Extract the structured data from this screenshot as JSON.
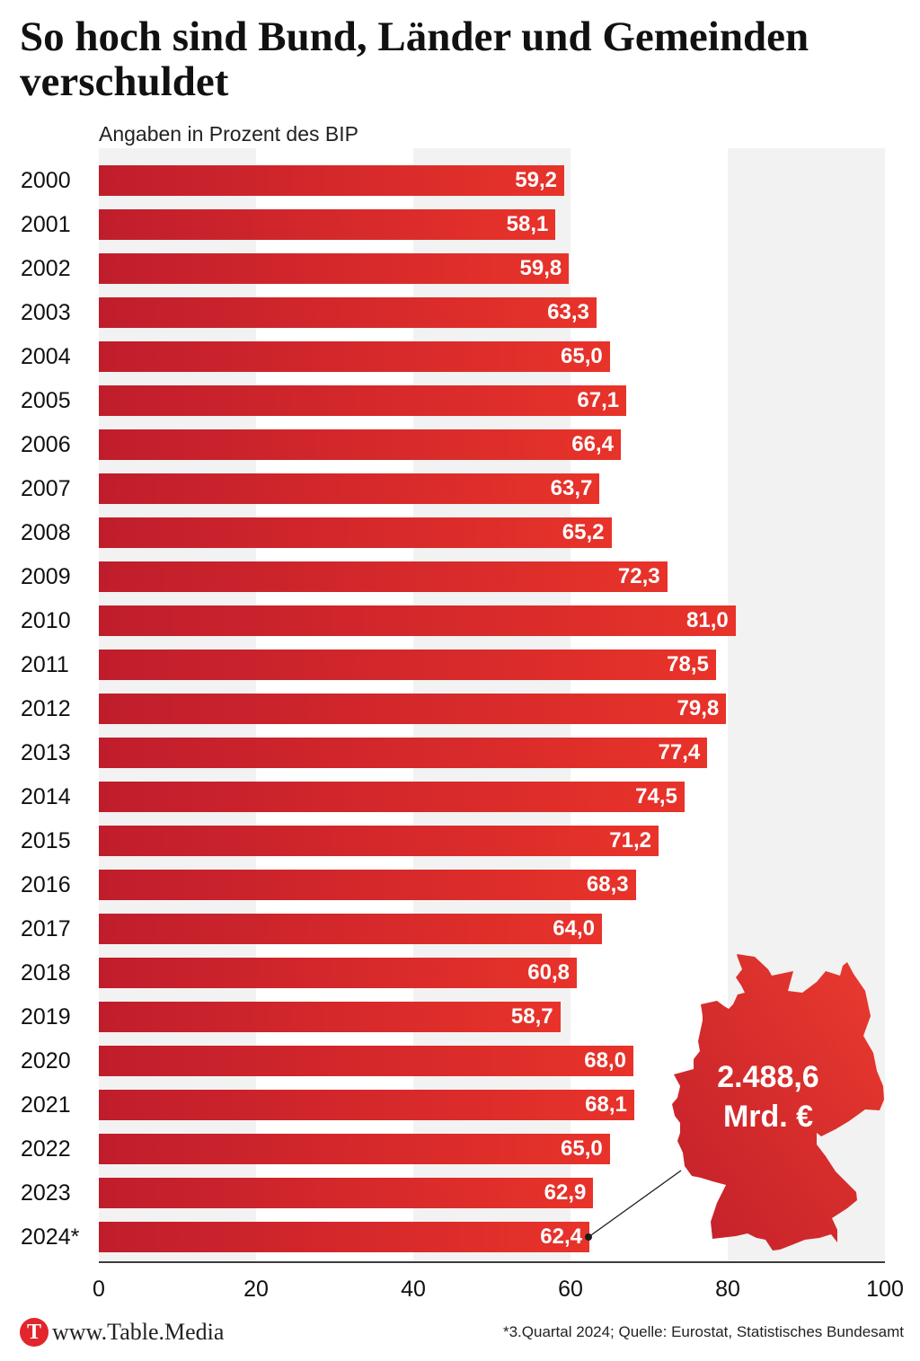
{
  "chart_data": {
    "type": "bar",
    "orientation": "horizontal",
    "title": "So hoch sind Bund, Länder und Gemeinden verschuldet",
    "subtitle": "Angaben in Prozent des BIP",
    "xlabel": "",
    "ylabel": "",
    "categories": [
      "2000",
      "2001",
      "2002",
      "2003",
      "2004",
      "2005",
      "2006",
      "2007",
      "2008",
      "2009",
      "2010",
      "2011",
      "2012",
      "2013",
      "2014",
      "2015",
      "2016",
      "2017",
      "2018",
      "2019",
      "2020",
      "2021",
      "2022",
      "2023",
      "2024*"
    ],
    "values": [
      59.2,
      58.1,
      59.8,
      63.3,
      65.0,
      67.1,
      66.4,
      63.7,
      65.2,
      72.3,
      81.0,
      78.5,
      79.8,
      77.4,
      74.5,
      71.2,
      68.3,
      64.0,
      60.8,
      58.7,
      68.0,
      68.1,
      65.0,
      62.9,
      62.4
    ],
    "value_labels": [
      "59,2",
      "58,1",
      "59,8",
      "63,3",
      "65,0",
      "67,1",
      "66,4",
      "63,7",
      "65,2",
      "72,3",
      "81,0",
      "78,5",
      "79,8",
      "77,4",
      "74,5",
      "71,2",
      "68,3",
      "64,0",
      "60,8",
      "58,7",
      "68,0",
      "68,1",
      "65,0",
      "62,9",
      "62,4"
    ],
    "xlim": [
      0,
      100
    ],
    "xticks": [
      0,
      20,
      40,
      60,
      80,
      100
    ],
    "grid": true,
    "legend": "none",
    "annotation": {
      "value": "2.488,6",
      "unit": "Mrd. €"
    },
    "footnote": "*3.Quartal 2024; Quelle: Eurostat, Statistisches Bundesamt"
  },
  "map": {
    "icon": "germany-map"
  },
  "brand": {
    "logo_letter": "T",
    "site": "www.Table.Media"
  },
  "colors": {
    "bar_start": "#c01d2c",
    "bar_end": "#e8332a",
    "map_start": "#c21f2b",
    "map_end": "#ea3b2e",
    "band": "#f1f2f1",
    "connector": "#1a1a1a",
    "logo": "#e1262c"
  }
}
